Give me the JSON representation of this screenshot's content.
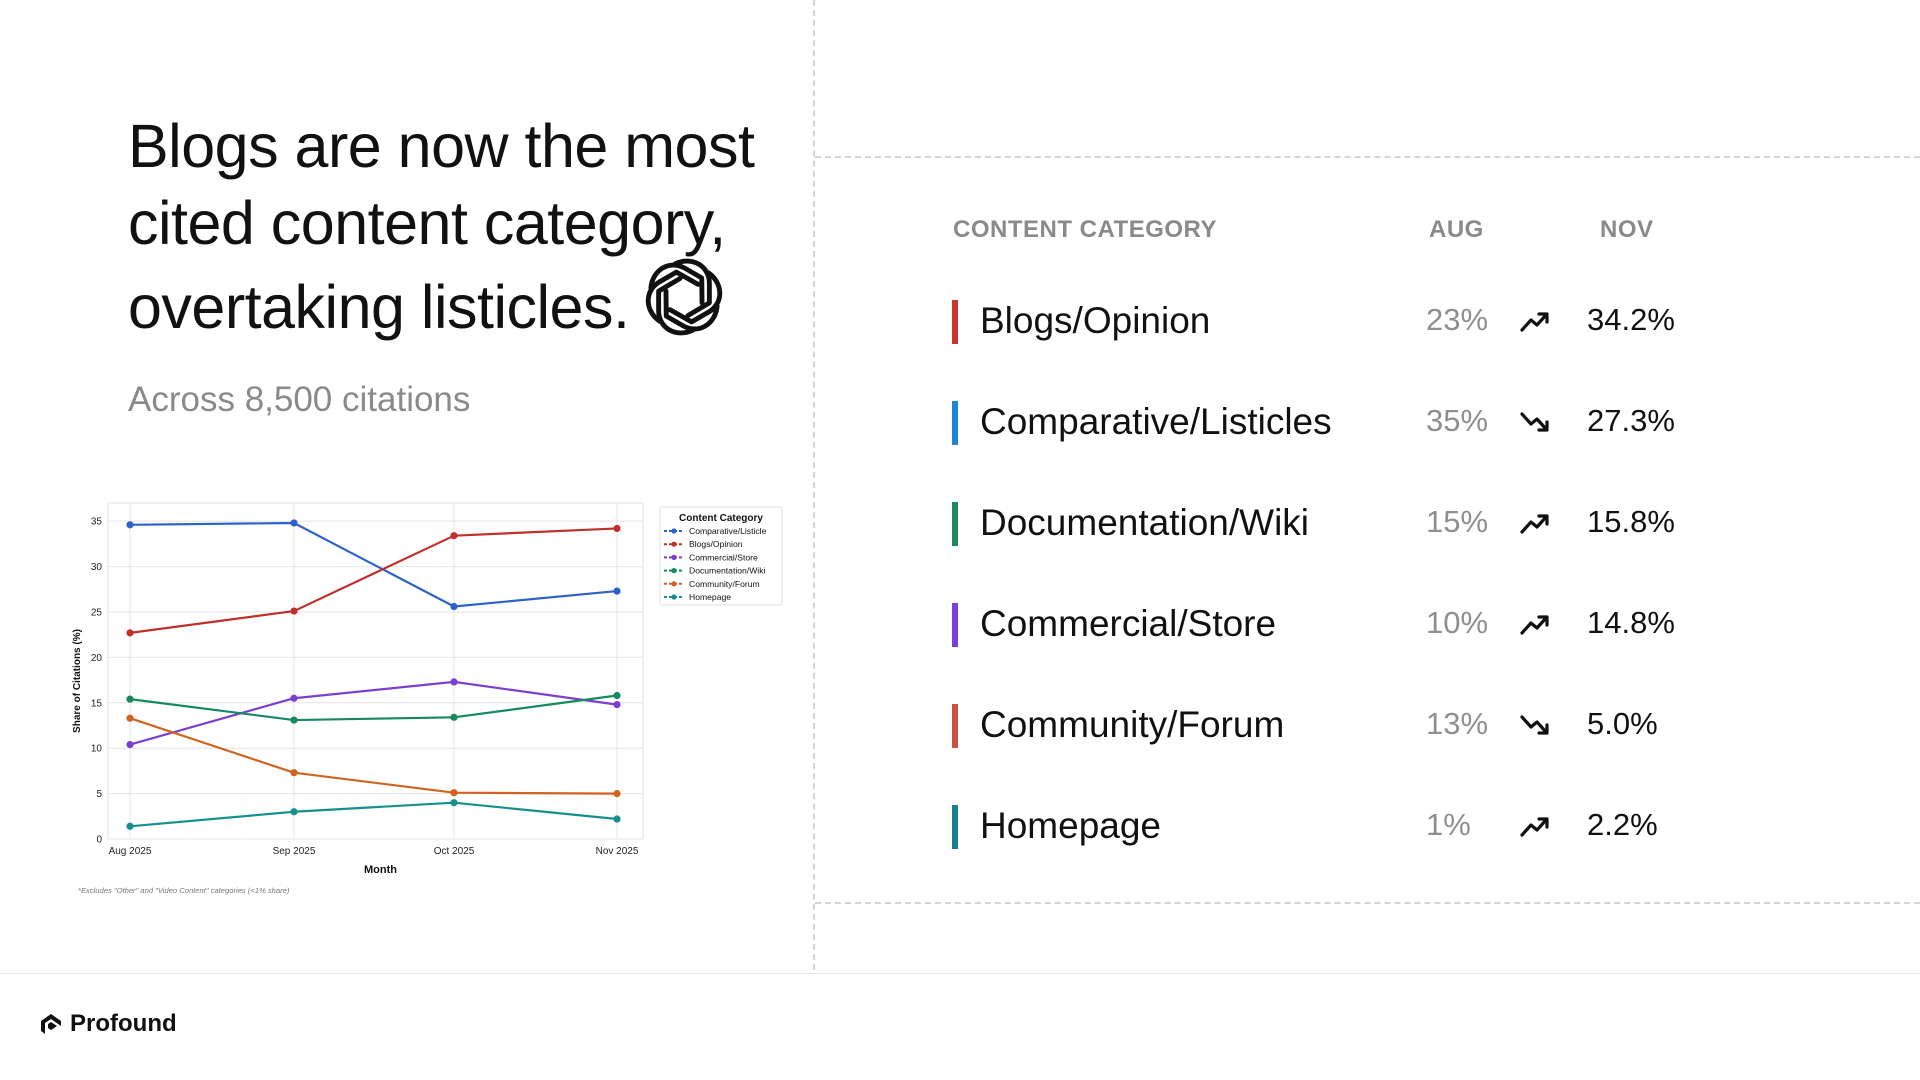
{
  "headline": {
    "line1": "Blogs are now the most",
    "line2": "cited content category,",
    "line3": "overtaking listicles."
  },
  "subhead": "Across 8,500 citations",
  "table": {
    "headers": {
      "category": "CONTENT CATEGORY",
      "aug": "AUG",
      "nov": "NOV"
    },
    "rows": [
      {
        "category": "Blogs/Opinion",
        "aug": "23%",
        "trend": "up",
        "nov": "34.2%",
        "color": "#c9352b"
      },
      {
        "category": "Comparative/Listicles",
        "aug": "35%",
        "trend": "down",
        "nov": "27.3%",
        "color": "#1f86d6"
      },
      {
        "category": "Documentation/Wiki",
        "aug": "15%",
        "trend": "up",
        "nov": "15.8%",
        "color": "#1e8a5a"
      },
      {
        "category": "Commercial/Store",
        "aug": "10%",
        "trend": "up",
        "nov": "14.8%",
        "color": "#7b3fe0"
      },
      {
        "category": "Community/Forum",
        "aug": "13%",
        "trend": "down",
        "nov": "5.0%",
        "color": "#cc5240"
      },
      {
        "category": "Homepage",
        "aug": "1%",
        "trend": "up",
        "nov": "2.2%",
        "color": "#16808c"
      }
    ]
  },
  "chart_data": {
    "type": "line",
    "title": "",
    "xlabel": "Month",
    "ylabel": "Share of Citations (%)",
    "categories": [
      "Aug 2025",
      "Sep 2025",
      "Oct 2025",
      "Nov 2025"
    ],
    "ylim": [
      0,
      37
    ],
    "yticks": [
      0,
      5,
      10,
      15,
      20,
      25,
      30,
      35
    ],
    "grid": true,
    "legend_title": "Content Category",
    "legend_position": "right",
    "footnote": "*Excludes \"Other\" and \"Video Content\" categories (<1% share)",
    "series": [
      {
        "name": "Comparative/Listicle",
        "color": "#2d63c8",
        "values": [
          34.6,
          34.8,
          25.6,
          27.3
        ]
      },
      {
        "name": "Blogs/Opinion",
        "color": "#c0302b",
        "values": [
          22.7,
          25.1,
          33.4,
          34.2
        ]
      },
      {
        "name": "Commercial/Store",
        "color": "#7b3fd0",
        "values": [
          10.4,
          15.5,
          17.3,
          14.8
        ]
      },
      {
        "name": "Documentation/Wiki",
        "color": "#168a5e",
        "values": [
          15.4,
          13.1,
          13.4,
          15.8
        ]
      },
      {
        "name": "Community/Forum",
        "color": "#d2621f",
        "values": [
          13.3,
          7.3,
          5.1,
          5.0
        ]
      },
      {
        "name": "Homepage",
        "color": "#15908f",
        "values": [
          1.4,
          3.0,
          4.0,
          2.2
        ]
      }
    ]
  },
  "brand": {
    "name": "Profound",
    "icon": "profound-logo-icon"
  },
  "headline_icon": "openai-logo-icon"
}
